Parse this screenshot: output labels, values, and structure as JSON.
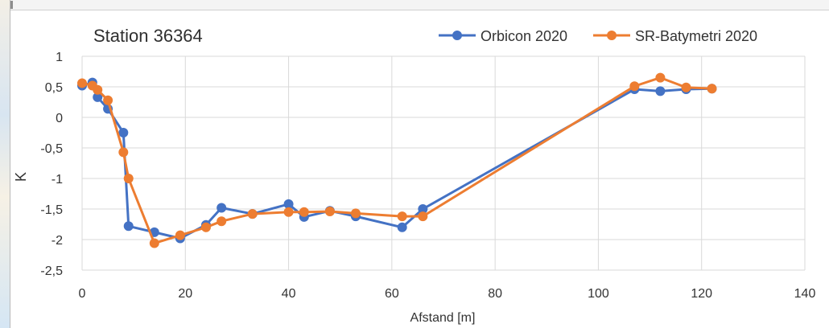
{
  "chart_data": {
    "type": "line",
    "title": "Station 36364",
    "xlabel": "Afstand [m]",
    "ylabel": "K",
    "xlim": [
      0,
      140
    ],
    "ylim": [
      -2.5,
      1
    ],
    "xticks": [
      0,
      20,
      40,
      60,
      80,
      100,
      120,
      140
    ],
    "yticks": [
      1,
      0.5,
      0,
      -0.5,
      -1,
      -1.5,
      -2,
      -2.5
    ],
    "ytick_labels": [
      "1",
      "0,5",
      "0",
      "-0,5",
      "-1",
      "-1,5",
      "-2",
      "-2,5"
    ],
    "grid": true,
    "legend_position": "top-right",
    "series": [
      {
        "name": "Orbicon 2020",
        "color": "#4472C4",
        "x": [
          0,
          2,
          3,
          5,
          8,
          9,
          14,
          19,
          24,
          27,
          33,
          40,
          43,
          48,
          53,
          62,
          66,
          107,
          112,
          117,
          122
        ],
        "values": [
          0.52,
          0.57,
          0.33,
          0.14,
          -0.25,
          -1.78,
          -1.88,
          -1.98,
          -1.76,
          -1.48,
          -1.58,
          -1.42,
          -1.63,
          -1.53,
          -1.62,
          -1.8,
          -1.5,
          0.46,
          0.43,
          0.46,
          0.47
        ]
      },
      {
        "name": "SR-Batymetri 2020",
        "color": "#ED7D31",
        "x": [
          0,
          2,
          3,
          5,
          8,
          9,
          14,
          19,
          24,
          27,
          33,
          40,
          43,
          48,
          53,
          62,
          66,
          107,
          112,
          117,
          122
        ],
        "values": [
          0.56,
          0.52,
          0.45,
          0.28,
          -0.57,
          -1.0,
          -2.06,
          -1.93,
          -1.8,
          -1.7,
          -1.58,
          -1.55,
          -1.55,
          -1.54,
          -1.57,
          -1.62,
          -1.62,
          0.51,
          0.65,
          0.49,
          0.47
        ]
      }
    ]
  }
}
